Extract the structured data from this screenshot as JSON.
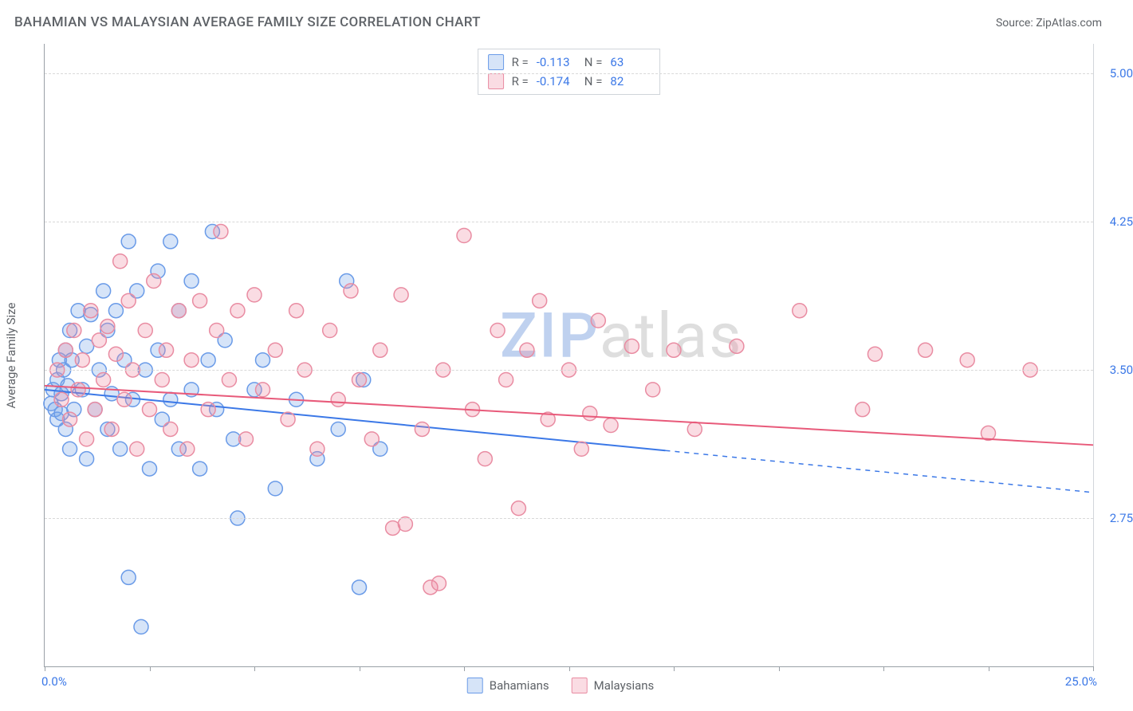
{
  "header": {
    "title": "BAHAMIAN VS MALAYSIAN AVERAGE FAMILY SIZE CORRELATION CHART",
    "source_prefix": "Source: ",
    "source_name": "ZipAtlas.com"
  },
  "watermark": {
    "a": "ZIP",
    "b": "atlas"
  },
  "chart": {
    "type": "scatter",
    "background_color": "#ffffff",
    "grid_color": "#d8d8d8",
    "axis_color": "#9aa0a6",
    "value_color": "#3b78e7",
    "label_color": "#5f6368",
    "xlim": [
      0,
      25
    ],
    "ylim": [
      2.0,
      5.15
    ],
    "xmin_label": "0.0%",
    "xmax_label": "25.0%",
    "yticks": [
      2.75,
      3.5,
      4.25,
      5.0
    ],
    "ytick_labels": [
      "2.75",
      "3.50",
      "4.25",
      "5.00"
    ],
    "xticks_pct": [
      0,
      2.5,
      5.0,
      7.5,
      10.0,
      12.5,
      15.0,
      17.5,
      20.0,
      22.5,
      25.0
    ],
    "ylabel": "Average Family Size",
    "label_fontsize": 15,
    "marker_radius": 9,
    "marker_stroke_width": 1.5,
    "marker_fill_opacity": 0.3,
    "trend_stroke_width": 2
  },
  "series": [
    {
      "key": "bahamians",
      "label": "Bahamians",
      "color": "#3b78e7",
      "fill": "rgba(120,164,232,0.30)",
      "stroke": "#6a9be8",
      "R": "-0.113",
      "N": "63",
      "trend": {
        "y_at_xmin": 3.4,
        "y_at_xmax": 2.88,
        "solid_until_x": 14.8
      },
      "points": [
        [
          0.15,
          3.33
        ],
        [
          0.2,
          3.4
        ],
        [
          0.25,
          3.3
        ],
        [
          0.3,
          3.45
        ],
        [
          0.3,
          3.25
        ],
        [
          0.35,
          3.55
        ],
        [
          0.4,
          3.38
        ],
        [
          0.4,
          3.28
        ],
        [
          0.45,
          3.5
        ],
        [
          0.5,
          3.6
        ],
        [
          0.5,
          3.2
        ],
        [
          0.55,
          3.42
        ],
        [
          0.6,
          3.7
        ],
        [
          0.6,
          3.1
        ],
        [
          0.65,
          3.55
        ],
        [
          0.7,
          3.3
        ],
        [
          0.8,
          3.8
        ],
        [
          0.9,
          3.4
        ],
        [
          1.0,
          3.62
        ],
        [
          1.0,
          3.05
        ],
        [
          1.1,
          3.78
        ],
        [
          1.2,
          3.3
        ],
        [
          1.3,
          3.5
        ],
        [
          1.4,
          3.9
        ],
        [
          1.5,
          3.2
        ],
        [
          1.5,
          3.7
        ],
        [
          1.6,
          3.38
        ],
        [
          1.7,
          3.8
        ],
        [
          1.8,
          3.1
        ],
        [
          1.9,
          3.55
        ],
        [
          2.0,
          4.15
        ],
        [
          2.0,
          2.45
        ],
        [
          2.1,
          3.35
        ],
        [
          2.2,
          3.9
        ],
        [
          2.3,
          2.2
        ],
        [
          2.4,
          3.5
        ],
        [
          2.5,
          3.0
        ],
        [
          2.7,
          3.6
        ],
        [
          2.7,
          4.0
        ],
        [
          2.8,
          3.25
        ],
        [
          3.0,
          4.15
        ],
        [
          3.0,
          3.35
        ],
        [
          3.2,
          3.8
        ],
        [
          3.2,
          3.1
        ],
        [
          3.5,
          3.95
        ],
        [
          3.5,
          3.4
        ],
        [
          3.7,
          3.0
        ],
        [
          3.9,
          3.55
        ],
        [
          4.0,
          4.2
        ],
        [
          4.1,
          3.3
        ],
        [
          4.3,
          3.65
        ],
        [
          4.5,
          3.15
        ],
        [
          4.6,
          2.75
        ],
        [
          5.0,
          3.4
        ],
        [
          5.2,
          3.55
        ],
        [
          5.5,
          2.9
        ],
        [
          6.0,
          3.35
        ],
        [
          6.5,
          3.05
        ],
        [
          7.0,
          3.2
        ],
        [
          7.2,
          3.95
        ],
        [
          7.5,
          2.4
        ],
        [
          7.6,
          3.45
        ],
        [
          8.0,
          3.1
        ]
      ]
    },
    {
      "key": "malaysians",
      "label": "Malaysians",
      "color": "#e85a7a",
      "fill": "rgba(238,140,162,0.30)",
      "stroke": "#e98ca2",
      "R": "-0.174",
      "N": "82",
      "trend": {
        "y_at_xmin": 3.42,
        "y_at_xmax": 3.12,
        "solid_until_x": 25.0
      },
      "points": [
        [
          0.3,
          3.5
        ],
        [
          0.4,
          3.35
        ],
        [
          0.5,
          3.6
        ],
        [
          0.6,
          3.25
        ],
        [
          0.7,
          3.7
        ],
        [
          0.8,
          3.4
        ],
        [
          0.9,
          3.55
        ],
        [
          1.0,
          3.15
        ],
        [
          1.1,
          3.8
        ],
        [
          1.2,
          3.3
        ],
        [
          1.3,
          3.65
        ],
        [
          1.4,
          3.45
        ],
        [
          1.5,
          3.72
        ],
        [
          1.6,
          3.2
        ],
        [
          1.7,
          3.58
        ],
        [
          1.8,
          4.05
        ],
        [
          1.9,
          3.35
        ],
        [
          2.0,
          3.85
        ],
        [
          2.1,
          3.5
        ],
        [
          2.2,
          3.1
        ],
        [
          2.4,
          3.7
        ],
        [
          2.5,
          3.3
        ],
        [
          2.6,
          3.95
        ],
        [
          2.8,
          3.45
        ],
        [
          2.9,
          3.6
        ],
        [
          3.0,
          3.2
        ],
        [
          3.2,
          3.8
        ],
        [
          3.4,
          3.1
        ],
        [
          3.5,
          3.55
        ],
        [
          3.7,
          3.85
        ],
        [
          3.9,
          3.3
        ],
        [
          4.1,
          3.7
        ],
        [
          4.2,
          4.2
        ],
        [
          4.4,
          3.45
        ],
        [
          4.6,
          3.8
        ],
        [
          4.8,
          3.15
        ],
        [
          5.0,
          3.88
        ],
        [
          5.2,
          3.4
        ],
        [
          5.5,
          3.6
        ],
        [
          5.8,
          3.25
        ],
        [
          6.0,
          3.8
        ],
        [
          6.2,
          3.5
        ],
        [
          6.5,
          3.1
        ],
        [
          6.8,
          3.7
        ],
        [
          7.0,
          3.35
        ],
        [
          7.3,
          3.9
        ],
        [
          7.5,
          3.45
        ],
        [
          7.8,
          3.15
        ],
        [
          8.0,
          3.6
        ],
        [
          8.3,
          2.7
        ],
        [
          8.5,
          3.88
        ],
        [
          8.6,
          2.72
        ],
        [
          9.0,
          3.2
        ],
        [
          9.2,
          2.4
        ],
        [
          9.4,
          2.42
        ],
        [
          9.5,
          3.5
        ],
        [
          10.0,
          4.18
        ],
        [
          10.2,
          3.3
        ],
        [
          10.5,
          3.05
        ],
        [
          10.8,
          3.7
        ],
        [
          11.0,
          3.45
        ],
        [
          11.3,
          2.8
        ],
        [
          11.5,
          3.6
        ],
        [
          11.8,
          3.85
        ],
        [
          12.0,
          3.25
        ],
        [
          12.5,
          3.5
        ],
        [
          12.8,
          3.1
        ],
        [
          13.0,
          3.28
        ],
        [
          13.2,
          3.75
        ],
        [
          13.5,
          3.22
        ],
        [
          14.0,
          3.62
        ],
        [
          14.5,
          3.4
        ],
        [
          15.0,
          3.6
        ],
        [
          15.5,
          3.2
        ],
        [
          16.5,
          3.62
        ],
        [
          18.0,
          3.8
        ],
        [
          19.5,
          3.3
        ],
        [
          19.8,
          3.58
        ],
        [
          21.0,
          3.6
        ],
        [
          22.0,
          3.55
        ],
        [
          22.5,
          3.18
        ],
        [
          23.5,
          3.5
        ]
      ]
    }
  ],
  "stats_legend": {
    "R_label": "R =",
    "N_label": "N ="
  }
}
